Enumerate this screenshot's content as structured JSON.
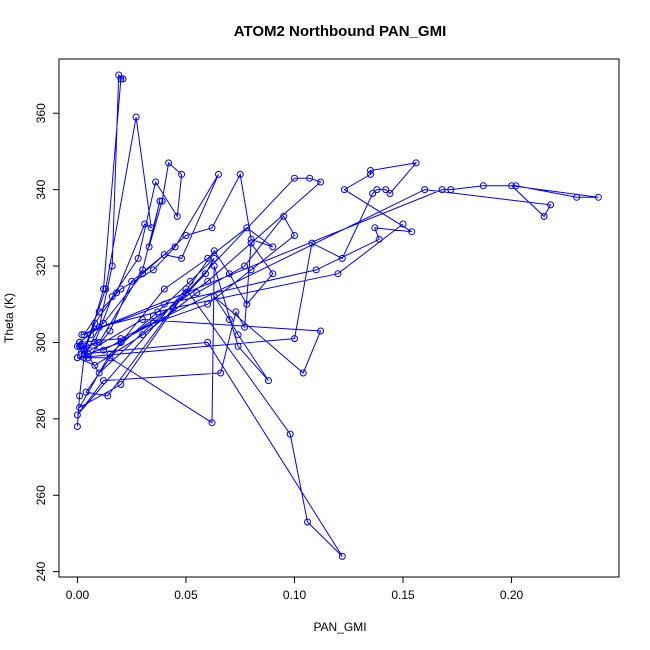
{
  "chart_data": {
    "type": "line",
    "title": "ATOM2 Northbound PAN_GMI",
    "xlabel": "PAN_GMI",
    "ylabel": "Theta (K)",
    "xlim": [
      -0.0085,
      0.2495
    ],
    "ylim": [
      238.6,
      374.2
    ],
    "xticks": [
      0.0,
      0.05,
      0.1,
      0.15,
      0.2
    ],
    "xtick_labels": [
      "0.00",
      "0.05",
      "0.10",
      "0.15",
      "0.20"
    ],
    "yticks": [
      240,
      260,
      280,
      300,
      320,
      340,
      360
    ],
    "ytick_labels": [
      "240",
      "260",
      "280",
      "300",
      "320",
      "340",
      "360"
    ],
    "grid": false,
    "legend": "none",
    "marker": "open-circle",
    "color": "#0000ff",
    "series": [
      {
        "x": [
          0.0,
          0.001,
          0.003,
          0.01,
          0.016,
          0.019,
          0.021,
          0.02,
          0.012,
          0.006,
          0.003,
          0.013,
          0.027,
          0.034,
          0.031,
          0.018,
          0.008,
          0.004,
          0.01,
          0.03,
          0.038,
          0.033,
          0.039,
          0.042,
          0.048,
          0.046,
          0.036,
          0.028,
          0.016,
          0.008,
          0.002,
          0.001,
          0.0,
          0.005,
          0.015,
          0.025,
          0.04,
          0.048,
          0.065,
          0.045,
          0.035,
          0.02,
          0.01,
          0.003,
          0.012,
          0.03,
          0.05,
          0.062,
          0.075,
          0.08,
          0.09,
          0.078,
          0.06,
          0.04,
          0.02,
          0.005,
          0.001,
          0.0,
          0.008,
          0.03,
          0.055,
          0.077,
          0.095,
          0.1,
          0.08,
          0.06,
          0.035,
          0.012,
          0.002,
          0.01,
          0.05,
          0.1,
          0.107,
          0.112,
          0.06,
          0.02,
          0.004,
          0.014,
          0.044,
          0.059,
          0.063,
          0.052,
          0.035,
          0.015,
          0.001,
          0.02,
          0.063,
          0.07,
          0.078,
          0.09,
          0.08,
          0.077,
          0.073,
          0.066,
          0.012,
          0.0,
          0.05,
          0.098,
          0.106,
          0.122,
          0.06,
          0.003,
          0.03,
          0.112,
          0.104,
          0.063,
          0.07,
          0.074,
          0.088,
          0.074,
          0.063,
          0.062,
          0.015,
          0.0,
          0.1,
          0.108,
          0.122,
          0.136,
          0.138,
          0.142,
          0.144,
          0.156,
          0.135,
          0.135,
          0.123,
          0.154,
          0.137,
          0.139,
          0.11,
          0.04,
          0.002,
          0.168,
          0.172,
          0.187,
          0.202,
          0.23,
          0.24,
          0.2,
          0.215,
          0.218,
          0.16,
          0.02,
          0.001,
          0.01,
          0.037,
          0.044,
          0.12,
          0.15
        ],
        "y": [
          278,
          286,
          296,
          304,
          320,
          370,
          369,
          369,
          314,
          302,
          298,
          314,
          359,
          330,
          331,
          313,
          305,
          299,
          300,
          319,
          337,
          325,
          337,
          347,
          344,
          333,
          342,
          322,
          312,
          300,
          297,
          300,
          299,
          296,
          303,
          316,
          323,
          322,
          344,
          325,
          319,
          314,
          308,
          302,
          305,
          318,
          328,
          330,
          344,
          327,
          325,
          330,
          322,
          314,
          300,
          297,
          299,
          296,
          294,
          302,
          313,
          320,
          333,
          328,
          319,
          310,
          305,
          298,
          299,
          292,
          313,
          343,
          343,
          342,
          316,
          300,
          287,
          286,
          309,
          318,
          322,
          316,
          307,
          297,
          283,
          289,
          324,
          318,
          310,
          318,
          326,
          304,
          308,
          292,
          290,
          281,
          314,
          276,
          253,
          244,
          300,
          297,
          306,
          303,
          292,
          312,
          306,
          302,
          290,
          299,
          320,
          279,
          296,
          296,
          301,
          326,
          322,
          339,
          340,
          340,
          339,
          347,
          345,
          344,
          340,
          329,
          330,
          327,
          319,
          310,
          302,
          340,
          340,
          341,
          341,
          338,
          338,
          341,
          333,
          336,
          340,
          301,
          300,
          304,
          308,
          309,
          318,
          331
        ]
      }
    ]
  }
}
